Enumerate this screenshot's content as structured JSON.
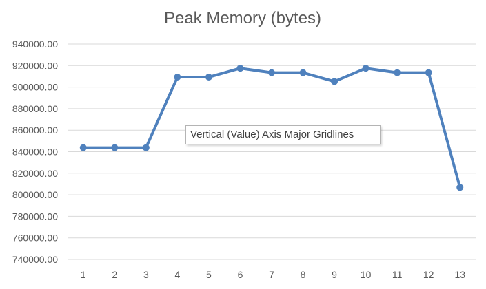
{
  "chart_data": {
    "type": "line",
    "title": "Peak Memory (bytes)",
    "xlabel": "",
    "ylabel": "",
    "categories": [
      "1",
      "2",
      "3",
      "4",
      "5",
      "6",
      "7",
      "8",
      "9",
      "10",
      "11",
      "12",
      "13"
    ],
    "series": [
      {
        "values": [
          843776,
          843776,
          843776,
          909312,
          909312,
          917504,
          913408,
          913408,
          905216,
          917504,
          913408,
          913408,
          806912
        ]
      }
    ],
    "ylim": [
      740000,
      940000
    ],
    "y_ticks": [
      740000,
      760000,
      780000,
      800000,
      820000,
      840000,
      860000,
      880000,
      900000,
      920000,
      940000
    ],
    "y_tick_labels": [
      "740000.00",
      "760000.00",
      "780000.00",
      "800000.00",
      "820000.00",
      "840000.00",
      "860000.00",
      "880000.00",
      "900000.00",
      "920000.00",
      "940000.00"
    ],
    "grid": true,
    "legend": "none",
    "markers": true,
    "series_color": "#4f81bd"
  },
  "tooltip": {
    "text": "Vertical (Value) Axis Major Gridlines"
  }
}
